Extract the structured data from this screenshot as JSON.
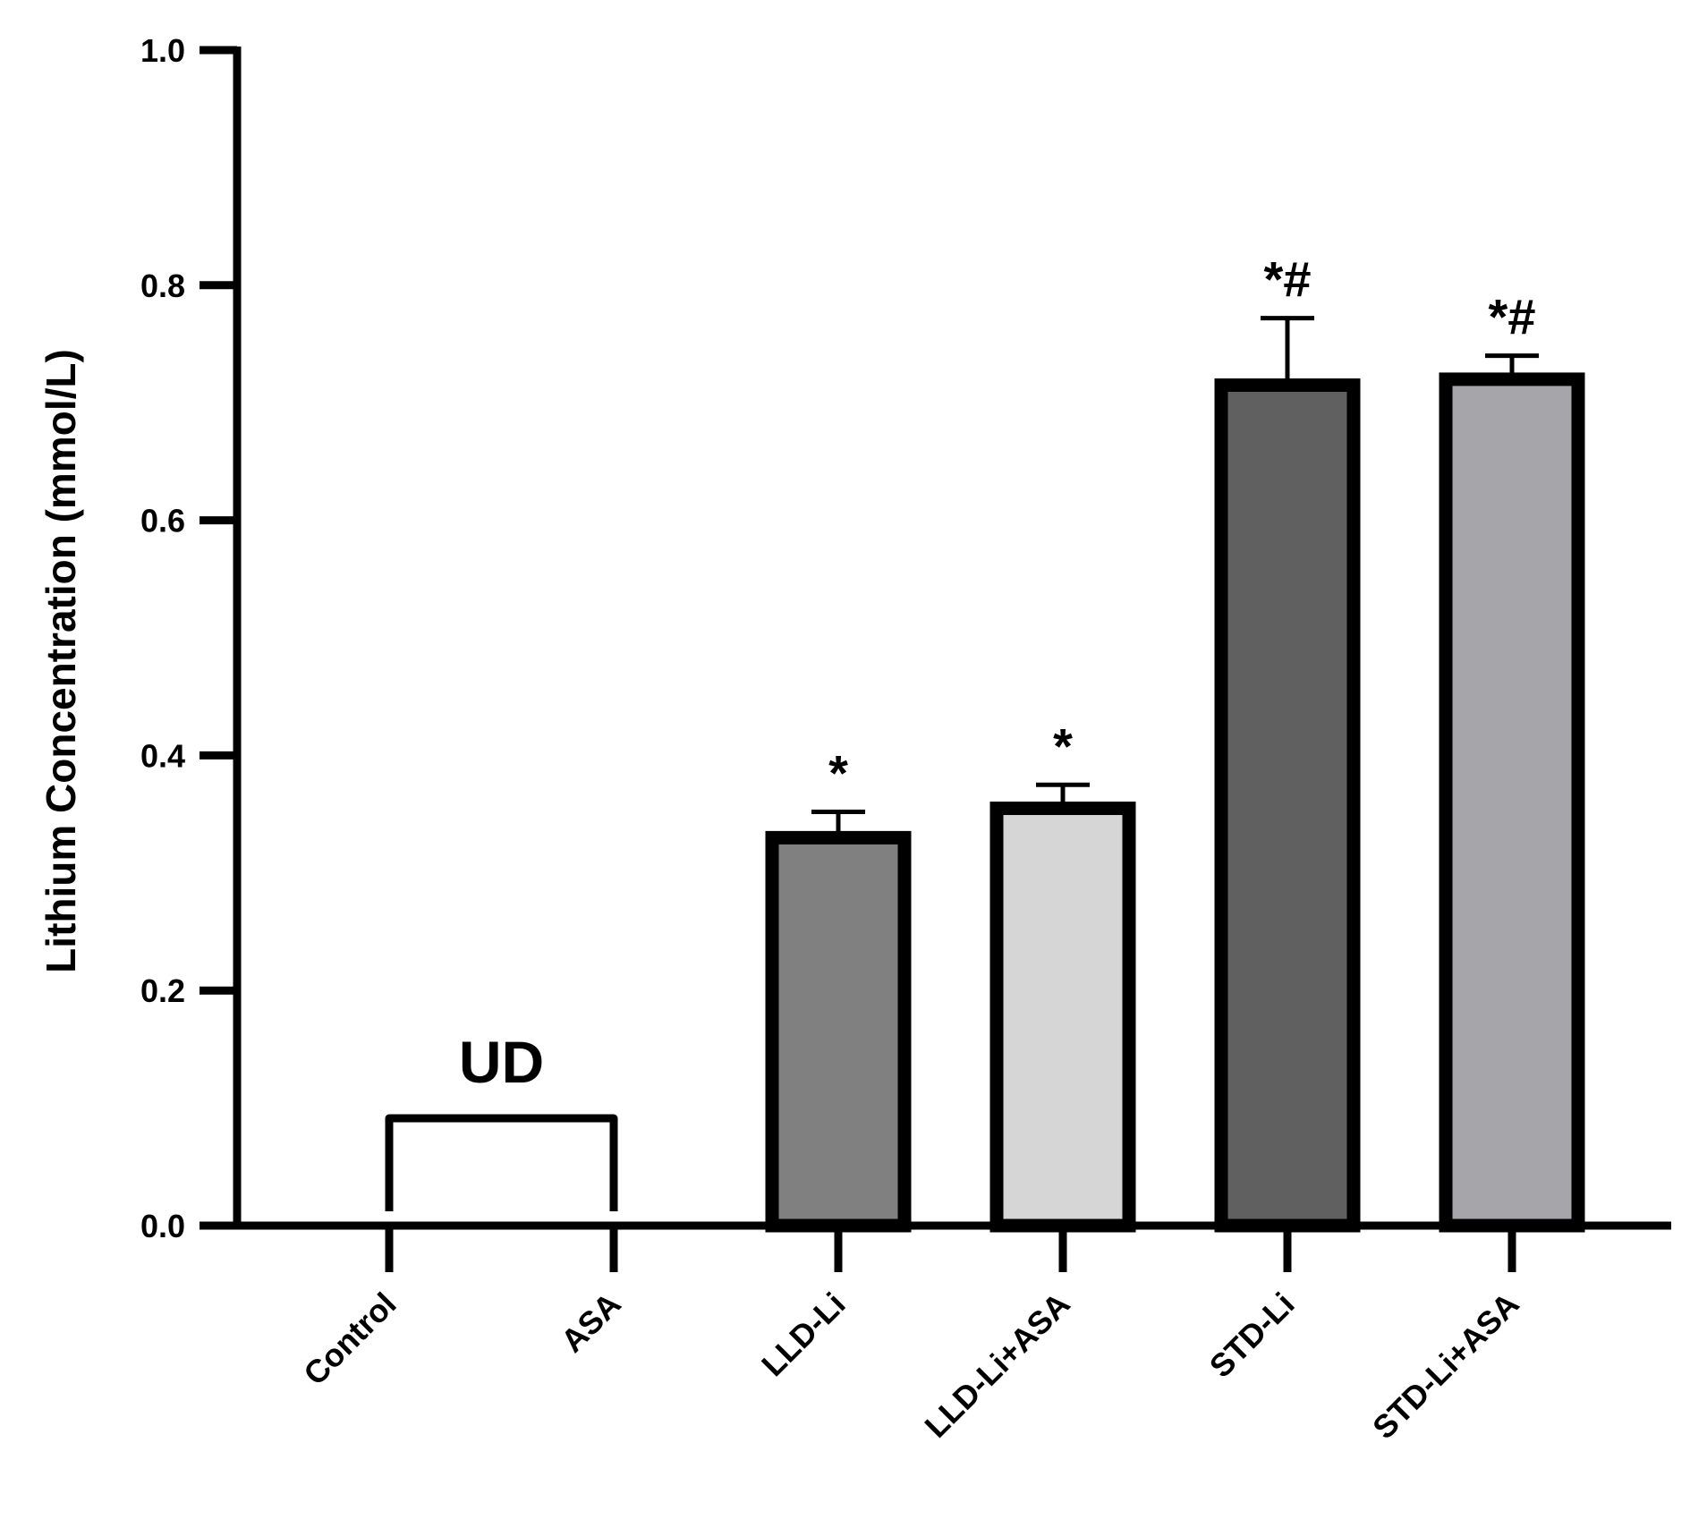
{
  "chart_data": {
    "type": "bar",
    "categories": [
      "Control",
      "ASA",
      "LLD-Li",
      "LLD-Li+ASA",
      "STD-Li",
      "STD-Li+ASA"
    ],
    "values": [
      null,
      null,
      0.33,
      0.355,
      0.715,
      0.72
    ],
    "errors": [
      null,
      null,
      0.022,
      0.02,
      0.057,
      0.02
    ],
    "fill_colors": [
      "#ffffff",
      "#ffffff",
      "#808080",
      "#d6d6d6",
      "#606060",
      "#a5a5aa"
    ],
    "significance": [
      "",
      "",
      "*",
      "*",
      "*#",
      "*#"
    ],
    "annotation": {
      "text": "UD",
      "spans": [
        "Control",
        "ASA"
      ]
    },
    "ylabel": "Lithium Concentration (mmol/L)",
    "xlabel": "",
    "ylim": [
      0,
      1.0
    ],
    "yticks": [
      "0.0",
      "0.2",
      "0.4",
      "0.6",
      "0.8",
      "1.0"
    ],
    "grid": false
  }
}
